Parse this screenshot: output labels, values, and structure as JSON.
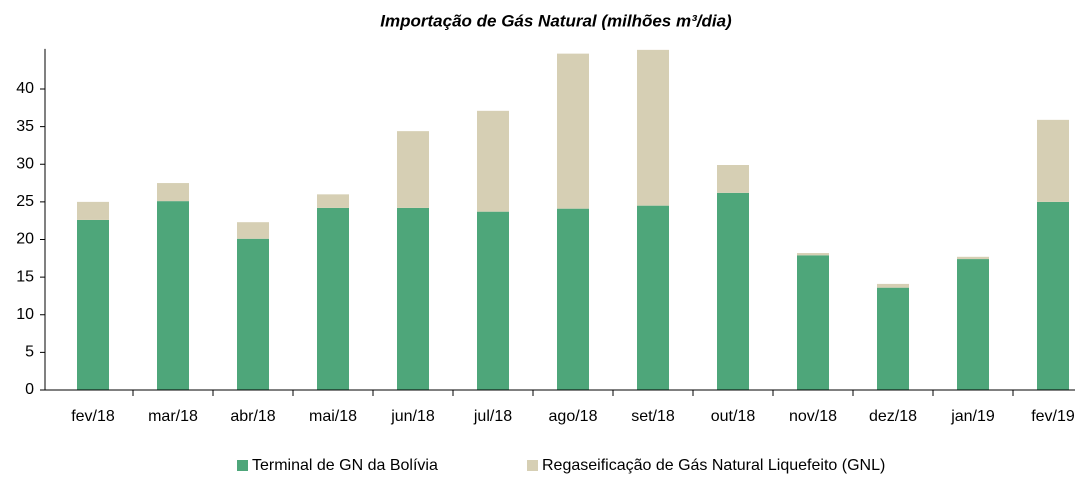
{
  "chart_data": {
    "type": "stacked_bar",
    "title": "Importação de Gás Natural (milhões m³/dia)",
    "categories": [
      "fev/18",
      "mar/18",
      "abr/18",
      "mai/18",
      "jun/18",
      "jul/18",
      "ago/18",
      "set/18",
      "out/18",
      "nov/18",
      "dez/18",
      "jan/19",
      "fev/19"
    ],
    "series": [
      {
        "name": "Terminal de GN da Bolívia",
        "color": "#4ea67a",
        "values": [
          22.6,
          25.1,
          20.1,
          24.2,
          24.2,
          23.7,
          24.1,
          24.5,
          26.2,
          17.9,
          13.6,
          17.4,
          25.0
        ]
      },
      {
        "name": "Regaseificação de Gás Natural Liquefeito (GNL)",
        "color": "#d6cfb4",
        "values": [
          2.4,
          2.4,
          2.2,
          1.8,
          10.2,
          13.4,
          20.6,
          20.7,
          3.7,
          0.3,
          0.5,
          0.3,
          10.9
        ]
      }
    ],
    "ylim": [
      0,
      46
    ],
    "yticks": [
      0,
      5,
      10,
      15,
      20,
      25,
      30,
      35,
      40
    ]
  }
}
